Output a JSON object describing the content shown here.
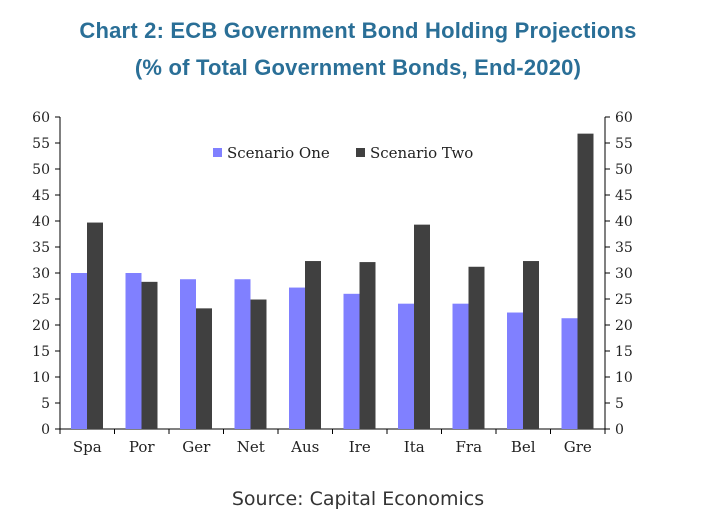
{
  "title": "Chart 2: ECB Government Bond Holding Projections",
  "subtitle": "(% of Total Government Bonds, End-2020)",
  "source": "Source: Capital Economics",
  "colors": {
    "title": "#2a6f97",
    "series_one": "#8080ff",
    "series_two": "#404040",
    "axis": "#000000"
  },
  "chart_data": {
    "type": "bar",
    "categories": [
      "Spa",
      "Por",
      "Ger",
      "Net",
      "Aus",
      "Ire",
      "Ita",
      "Fra",
      "Bel",
      "Gre"
    ],
    "series": [
      {
        "name": "Scenario One",
        "values": [
          30,
          30,
          28.8,
          28.8,
          27.2,
          26,
          24.1,
          24.1,
          22.4,
          21.3
        ]
      },
      {
        "name": "Scenario Two",
        "values": [
          39.7,
          28.3,
          23.2,
          24.9,
          32.3,
          32.1,
          39.3,
          31.2,
          32.3,
          56.8
        ]
      }
    ],
    "ylim": [
      0,
      60
    ],
    "yticks": [
      0,
      5,
      10,
      15,
      20,
      25,
      30,
      35,
      40,
      45,
      50,
      55,
      60
    ],
    "secondary_y_axis": true,
    "legend_position": "top-center",
    "grid": false
  }
}
